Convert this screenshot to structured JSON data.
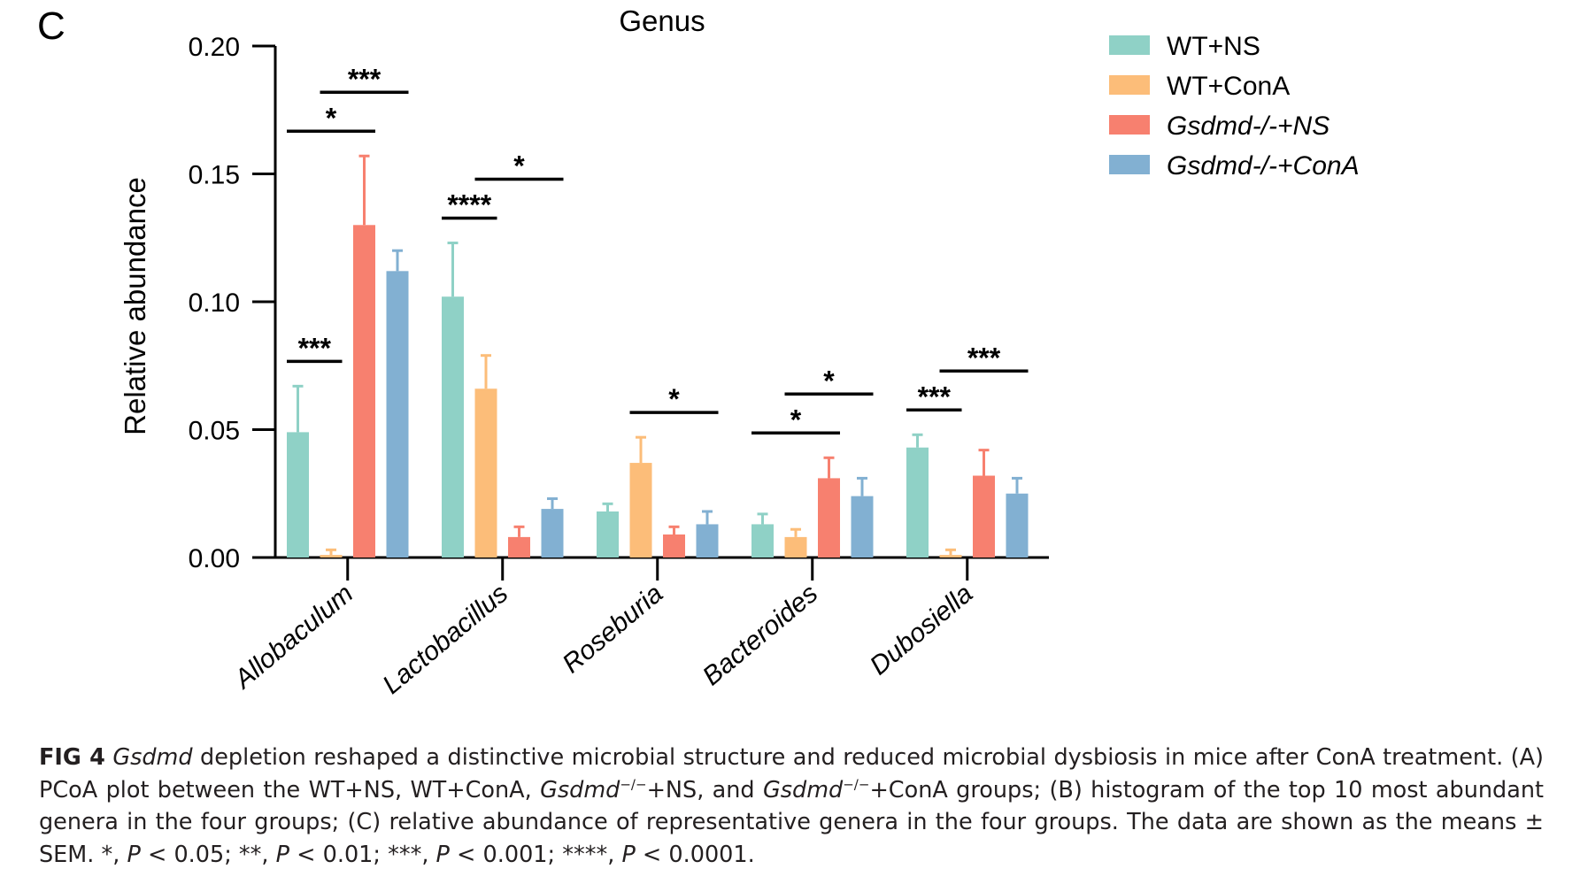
{
  "panel_label": "C",
  "chart_data": {
    "type": "bar",
    "title": "Genus",
    "ylabel": "Relative abundance",
    "xlabel": "",
    "ylim": [
      0,
      0.2
    ],
    "yticks": [
      "0.00",
      "0.05",
      "0.10",
      "0.15",
      "0.20"
    ],
    "grid": false,
    "legend_position": "top-right",
    "categories": [
      "Allobaculum",
      "Lactobacillus",
      "Roseburia",
      "Bacteroides",
      "Dubosiella"
    ],
    "series": [
      {
        "name": "WT+NS",
        "color": "#8fd1c6",
        "values": [
          0.049,
          0.102,
          0.018,
          0.013,
          0.043
        ],
        "errors": [
          0.018,
          0.021,
          0.003,
          0.004,
          0.005
        ]
      },
      {
        "name": "WT+ConA",
        "color": "#fcbd79",
        "values": [
          0.001,
          0.066,
          0.037,
          0.008,
          0.001
        ],
        "errors": [
          0.002,
          0.013,
          0.01,
          0.003,
          0.002
        ]
      },
      {
        "name": "Gsdmd-/-+NS",
        "color": "#f7806f",
        "values": [
          0.13,
          0.008,
          0.009,
          0.031,
          0.032
        ],
        "errors": [
          0.027,
          0.004,
          0.003,
          0.008,
          0.01
        ]
      },
      {
        "name": "Gsdmd-/-+ConA",
        "color": "#82b0d2",
        "values": [
          0.112,
          0.019,
          0.013,
          0.024,
          0.025
        ],
        "errors": [
          0.008,
          0.004,
          0.005,
          0.007,
          0.006
        ]
      }
    ],
    "significance": [
      {
        "category": 0,
        "from": 0,
        "to": 1,
        "label": "***"
      },
      {
        "category": 0,
        "from": 0,
        "to": 2,
        "label": "*"
      },
      {
        "category": 0,
        "from": 1,
        "to": 3,
        "label": "***"
      },
      {
        "category": 1,
        "from": 0,
        "to": 1,
        "label": "****"
      },
      {
        "category": 1,
        "from": 1,
        "to": 3,
        "label": "*"
      },
      {
        "category": 2,
        "from": 1,
        "to": 3,
        "label": "*"
      },
      {
        "category": 3,
        "from": 0,
        "to": 2,
        "label": "*"
      },
      {
        "category": 3,
        "from": 1,
        "to": 3,
        "label": "*"
      },
      {
        "category": 4,
        "from": 0,
        "to": 1,
        "label": "***"
      },
      {
        "category": 4,
        "from": 1,
        "to": 3,
        "label": "***"
      }
    ]
  },
  "caption": {
    "label": "FIG 4",
    "title_gene": "Gsdmd",
    "title_rest": " depletion reshaped a distinctive microbial structure and reduced microbial dysbiosis in mice after ConA treatment.",
    "part_a_1": " (A) PCoA plot between the WT+NS, WT+ConA, ",
    "gene_1": "Gsdmd",
    "superscript_1": "−/−",
    "part_a_2": "+NS, and ",
    "gene_2": "Gsdmd",
    "superscript_2": "−/−",
    "part_a_3": "+ConA groups; (B) histogram of the top 10 most abundant genera in the four groups; (C) relative abundance of representative genera in the four groups. The data are shown as the means ± SEM. *, ",
    "p1": "P",
    "t1": " < 0.05; **, ",
    "p2": "P",
    "t2": " < 0.01; ***, ",
    "p3": "P",
    "t3": " < 0.001; ****, ",
    "p4": "P",
    "t4": " < 0.0001."
  }
}
